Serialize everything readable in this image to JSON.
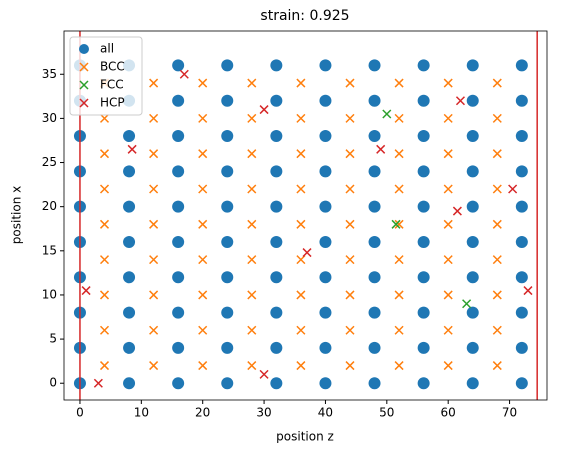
{
  "chart_data": {
    "type": "scatter",
    "title": "strain: 0.925",
    "xlabel": "position z",
    "ylabel": "position x",
    "xlim": [
      -2.6,
      76.1
    ],
    "ylim": [
      -1.9,
      39.9
    ],
    "xticks": [
      0,
      10,
      20,
      30,
      40,
      50,
      60,
      70
    ],
    "yticks": [
      0,
      5,
      10,
      15,
      20,
      25,
      30,
      35
    ],
    "legend": "upper left",
    "vlines": [
      0,
      74.5
    ],
    "vline_color": "#d62728",
    "series": [
      {
        "name": "all",
        "color": "#1f77b4",
        "marker": "o",
        "x": [
          0,
          8,
          16,
          24,
          32,
          40,
          48,
          56,
          64,
          72,
          0,
          8,
          16,
          24,
          32,
          40,
          48,
          56,
          64,
          72,
          0,
          8,
          16,
          24,
          32,
          40,
          48,
          56,
          64,
          72,
          0,
          8,
          16,
          24,
          32,
          40,
          48,
          56,
          64,
          72,
          0,
          8,
          16,
          24,
          32,
          40,
          48,
          56,
          64,
          72,
          0,
          8,
          16,
          24,
          32,
          40,
          48,
          56,
          64,
          72,
          0,
          8,
          16,
          24,
          32,
          40,
          48,
          56,
          64,
          72,
          0,
          8,
          16,
          24,
          32,
          40,
          48,
          56,
          64,
          72,
          0,
          8,
          16,
          24,
          32,
          40,
          48,
          56,
          64,
          72,
          0,
          8,
          16,
          24,
          32,
          40,
          48,
          56,
          64,
          72
        ],
        "values": [
          0,
          0,
          0,
          0,
          0,
          0,
          0,
          0,
          0,
          0,
          4,
          4,
          4,
          4,
          4,
          4,
          4,
          4,
          4,
          4,
          8,
          8,
          8,
          8,
          8,
          8,
          8,
          8,
          8,
          8,
          12,
          12,
          12,
          12,
          12,
          12,
          12,
          12,
          12,
          12,
          16,
          16,
          16,
          16,
          16,
          16,
          16,
          16,
          16,
          16,
          20,
          20,
          20,
          20,
          20,
          20,
          20,
          20,
          20,
          20,
          24,
          24,
          24,
          24,
          24,
          24,
          24,
          24,
          24,
          24,
          28,
          28,
          28,
          28,
          28,
          28,
          28,
          28,
          28,
          28,
          32,
          32,
          32,
          32,
          32,
          32,
          32,
          32,
          32,
          32,
          36,
          36,
          36,
          36,
          36,
          36,
          36,
          36,
          36,
          36
        ]
      },
      {
        "name": "BCC",
        "color": "#ff7f0e",
        "marker": "x",
        "x": [
          4,
          12,
          20,
          28,
          36,
          44,
          52,
          60,
          68,
          4,
          12,
          20,
          28,
          36,
          44,
          52,
          60,
          68,
          4,
          12,
          20,
          28,
          36,
          44,
          52,
          60,
          68,
          4,
          12,
          20,
          28,
          36,
          44,
          52,
          60,
          68,
          4,
          12,
          20,
          28,
          36,
          44,
          52,
          60,
          68,
          4,
          12,
          20,
          28,
          36,
          44,
          52,
          60,
          68,
          4,
          12,
          20,
          28,
          36,
          44,
          52,
          60,
          68,
          4,
          12,
          20,
          28,
          36,
          44,
          52,
          60,
          68,
          4,
          12,
          20,
          28,
          36,
          44,
          52,
          60,
          68
        ],
        "values": [
          2,
          2,
          2,
          2,
          2,
          2,
          2,
          2,
          2,
          6,
          6,
          6,
          6,
          6,
          6,
          6,
          6,
          6,
          10,
          10,
          10,
          10,
          10,
          10,
          10,
          10,
          10,
          14,
          14,
          14,
          14,
          14,
          14,
          14,
          14,
          14,
          18,
          18,
          18,
          18,
          18,
          18,
          18,
          18,
          18,
          22,
          22,
          22,
          22,
          22,
          22,
          22,
          22,
          22,
          26,
          26,
          26,
          26,
          26,
          26,
          26,
          26,
          26,
          30,
          30,
          30,
          30,
          30,
          30,
          30,
          30,
          30,
          34,
          34,
          34,
          34,
          34,
          34,
          34,
          34,
          34
        ]
      },
      {
        "name": "FCC",
        "color": "#2ca02c",
        "marker": "x",
        "x": [
          50,
          51.5,
          63
        ],
        "values": [
          30.5,
          18,
          9
        ]
      },
      {
        "name": "HCP",
        "color": "#d62728",
        "marker": "x",
        "x": [
          8.5,
          17,
          30,
          62,
          61.5,
          70.5,
          73,
          37,
          3,
          30,
          49,
          1
        ],
        "values": [
          26.5,
          35,
          31,
          32,
          19.5,
          22,
          10.5,
          14.8,
          0,
          1,
          26.5,
          10.5
        ]
      }
    ]
  }
}
